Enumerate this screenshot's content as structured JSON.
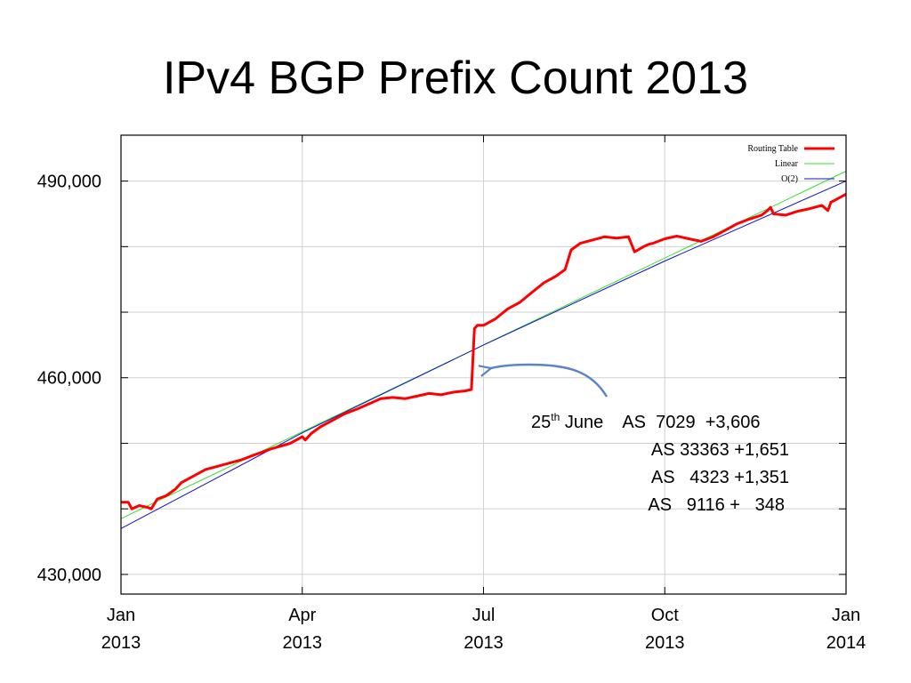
{
  "title": "IPv4 BGP Prefix Count 2013",
  "chart_data": {
    "type": "line",
    "title": "IPv4 BGP Prefix Count 2013",
    "xlabel": "",
    "ylabel": "",
    "x_ticks": [
      {
        "month": 0,
        "line1": "Jan",
        "line2": "2013"
      },
      {
        "month": 3,
        "line1": "Apr",
        "line2": "2013"
      },
      {
        "month": 6,
        "line1": "Jul",
        "line2": "2013"
      },
      {
        "month": 9,
        "line1": "Oct",
        "line2": "2013"
      },
      {
        "month": 12,
        "line1": "Jan",
        "line2": "2014"
      }
    ],
    "y_ticks": [
      {
        "value": 430000,
        "label": "430,000"
      },
      {
        "value": 460000,
        "label": "460,000"
      },
      {
        "value": 490000,
        "label": "490,000"
      }
    ],
    "y_gridlines": [
      440000,
      450000,
      470000,
      480000
    ],
    "xlim": [
      0,
      12
    ],
    "ylim": [
      427000,
      497000
    ],
    "grid": true,
    "legend": "top-right",
    "series": [
      {
        "name": "Routing Table",
        "color": "#ff0000",
        "x": [
          0.0,
          0.12,
          0.18,
          0.3,
          0.45,
          0.5,
          0.6,
          0.75,
          0.9,
          1.0,
          1.2,
          1.4,
          1.6,
          1.8,
          2.0,
          2.2,
          2.5,
          2.8,
          3.0,
          3.05,
          3.15,
          3.3,
          3.5,
          3.7,
          3.9,
          4.1,
          4.3,
          4.5,
          4.7,
          4.9,
          5.1,
          5.3,
          5.5,
          5.7,
          5.8,
          5.85,
          5.9,
          6.0,
          6.2,
          6.4,
          6.6,
          6.8,
          7.0,
          7.2,
          7.35,
          7.45,
          7.6,
          7.8,
          8.0,
          8.2,
          8.4,
          8.5,
          8.65,
          8.72,
          8.8,
          9.0,
          9.2,
          9.4,
          9.6,
          9.8,
          10.0,
          10.2,
          10.4,
          10.6,
          10.7,
          10.75,
          10.8,
          11.0,
          11.2,
          11.4,
          11.6,
          11.7,
          11.75,
          11.8,
          12.0
        ],
        "y": [
          441000,
          441000,
          440000,
          440500,
          440200,
          440000,
          441500,
          442000,
          443000,
          444000,
          445000,
          446000,
          446500,
          447000,
          447500,
          448200,
          449200,
          450000,
          451000,
          450500,
          451500,
          452500,
          453500,
          454500,
          455200,
          456000,
          456800,
          457000,
          456800,
          457200,
          457600,
          457400,
          457800,
          458000,
          458200,
          467500,
          468000,
          468000,
          469000,
          470500,
          471500,
          473000,
          474500,
          475500,
          476500,
          479500,
          480500,
          481000,
          481500,
          481300,
          481500,
          479200,
          480000,
          480300,
          480500,
          481200,
          481600,
          481200,
          480800,
          481500,
          482500,
          483500,
          484200,
          484800,
          485500,
          486000,
          485000,
          484800,
          485400,
          485800,
          486300,
          485500,
          486800,
          487000,
          488000
        ]
      },
      {
        "name": "Linear",
        "color": "#33dd33",
        "x": [
          0,
          12
        ],
        "y": [
          438500,
          491500
        ]
      },
      {
        "name": "O(2)",
        "color": "#1111cc",
        "x": [
          0,
          3,
          6,
          9,
          12
        ],
        "y": [
          437000,
          451600,
          465000,
          477800,
          490000
        ]
      }
    ],
    "annotation": {
      "lines": [
        {
          "text": "25",
          "sup": "th",
          "after": " June    AS  7029  +3,606"
        },
        {
          "text": "AS 33363 +1,651"
        },
        {
          "text": "AS   4323 +1,351"
        },
        {
          "text": "AS   9116 +   348"
        }
      ],
      "arrow_color": "#5b84c6"
    }
  }
}
